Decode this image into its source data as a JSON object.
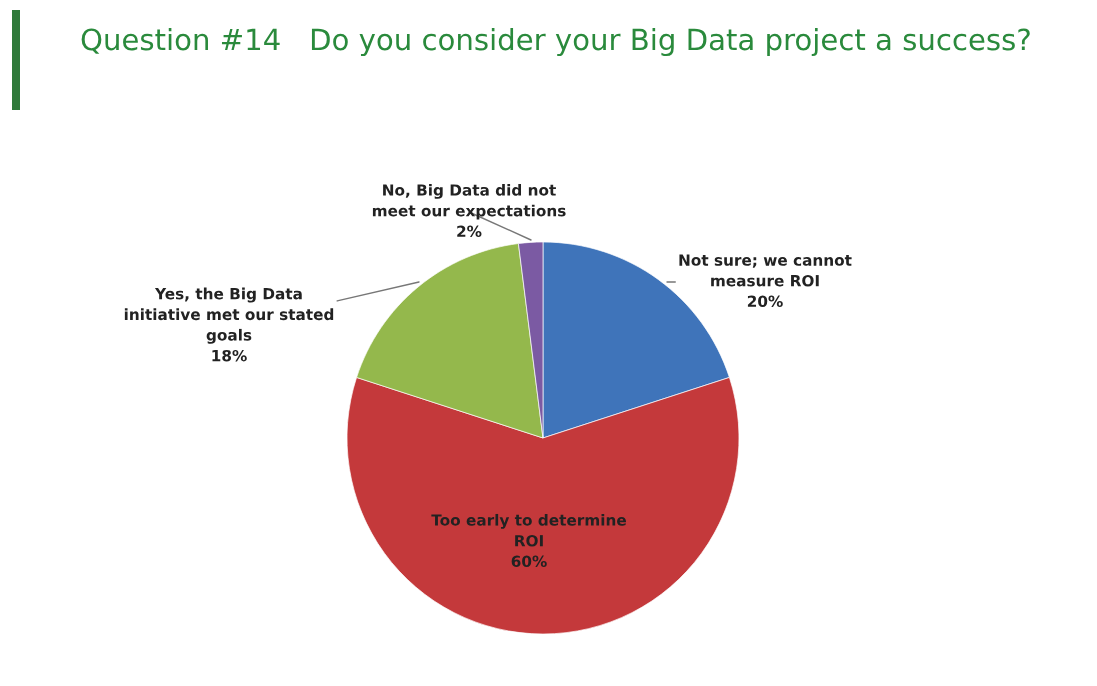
{
  "chart_data": {
    "type": "pie",
    "title": "Question #14   Do you consider your Big Data project a success?",
    "categories": [
      "Not sure; we cannot measure ROI",
      "Too early to determine ROI",
      "Yes, the Big Data initiative met our stated goals",
      "No, Big Data did not meet our expectations"
    ],
    "values": [
      20,
      60,
      18,
      2
    ],
    "value_labels": [
      "20%",
      "60%",
      "18%",
      "2%"
    ],
    "colors": [
      "#3f74ba",
      "#c4393b",
      "#94b84c",
      "#7b5aa3"
    ],
    "legend": false
  }
}
